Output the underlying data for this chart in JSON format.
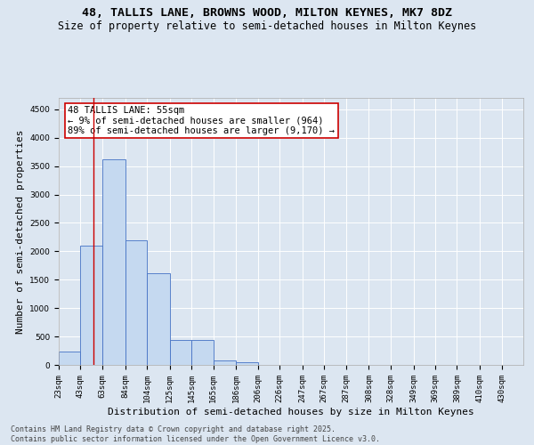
{
  "title_line1": "48, TALLIS LANE, BROWNS WOOD, MILTON KEYNES, MK7 8DZ",
  "title_line2": "Size of property relative to semi-detached houses in Milton Keynes",
  "xlabel": "Distribution of semi-detached houses by size in Milton Keynes",
  "ylabel": "Number of semi-detached properties",
  "footer": "Contains HM Land Registry data © Crown copyright and database right 2025.\nContains public sector information licensed under the Open Government Licence v3.0.",
  "annotation_title": "48 TALLIS LANE: 55sqm",
  "annotation_line2": "← 9% of semi-detached houses are smaller (964)",
  "annotation_line3": "89% of semi-detached houses are larger (9,170) →",
  "property_size": 55,
  "bar_left_edges": [
    23,
    43,
    63,
    84,
    104,
    125,
    145,
    165,
    186,
    206,
    226,
    247,
    267,
    287,
    308,
    328,
    349,
    369,
    389,
    410
  ],
  "bar_widths": [
    20,
    20,
    21,
    20,
    21,
    20,
    20,
    21,
    20,
    20,
    21,
    20,
    20,
    21,
    20,
    21,
    20,
    20,
    21,
    20
  ],
  "bar_heights": [
    230,
    2100,
    3620,
    2200,
    1620,
    440,
    440,
    80,
    50,
    0,
    0,
    0,
    0,
    0,
    0,
    0,
    0,
    0,
    0,
    0
  ],
  "bar_color": "#c5d9f0",
  "bar_edge_color": "#4472c4",
  "vline_x": 55,
  "vline_color": "#cc0000",
  "background_color": "#dce6f1",
  "plot_bg_color": "#dce6f1",
  "ylim": [
    0,
    4700
  ],
  "yticks": [
    0,
    500,
    1000,
    1500,
    2000,
    2500,
    3000,
    3500,
    4000,
    4500
  ],
  "xlim": [
    23,
    450
  ],
  "xtick_labels": [
    "23sqm",
    "43sqm",
    "63sqm",
    "84sqm",
    "104sqm",
    "125sqm",
    "145sqm",
    "165sqm",
    "186sqm",
    "206sqm",
    "226sqm",
    "247sqm",
    "267sqm",
    "287sqm",
    "308sqm",
    "328sqm",
    "349sqm",
    "369sqm",
    "389sqm",
    "410sqm",
    "430sqm"
  ],
  "xtick_positions": [
    23,
    43,
    63,
    84,
    104,
    125,
    145,
    165,
    186,
    206,
    226,
    247,
    267,
    287,
    308,
    328,
    349,
    369,
    389,
    410,
    430
  ],
  "grid_color": "#ffffff",
  "title_fontsize": 9.5,
  "subtitle_fontsize": 8.5,
  "axis_label_fontsize": 8,
  "tick_fontsize": 6.5,
  "footer_fontsize": 6,
  "annotation_fontsize": 7.5,
  "box_color": "#cc0000"
}
